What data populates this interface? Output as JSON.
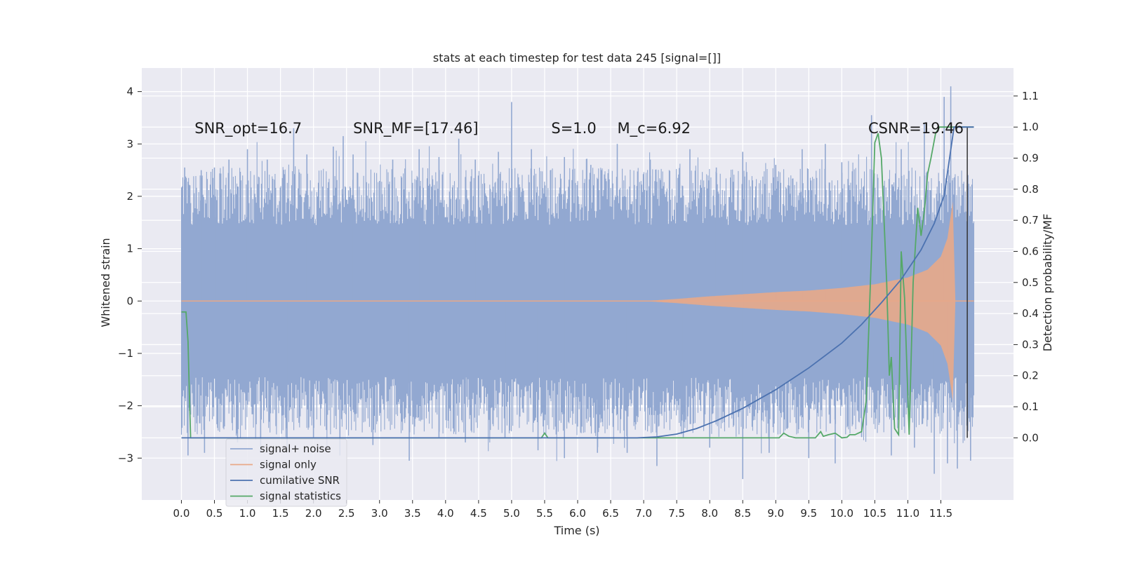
{
  "chart_data": {
    "type": "line",
    "title": "stats at each timestep for test data 245 [signal=[]]",
    "xlabel": "Time (s)",
    "ylabel_left": "Whitened strain",
    "ylabel_right": "Detection probability/MF",
    "xlim": [
      -0.6,
      12.6
    ],
    "ylim_left": [
      -3.8,
      4.45
    ],
    "ylim_right": [
      -0.2,
      1.19
    ],
    "grid": true,
    "legend_placement": "lower-left",
    "x_ticks": [
      0.0,
      0.5,
      1.0,
      1.5,
      2.0,
      2.5,
      3.0,
      3.5,
      4.0,
      4.5,
      5.0,
      5.5,
      6.0,
      6.5,
      7.0,
      7.5,
      8.0,
      8.5,
      9.0,
      9.5,
      10.0,
      10.5,
      11.0,
      11.5
    ],
    "x_tick_labels": [
      "0.0",
      "0.5",
      "1.0",
      "1.5",
      "2.0",
      "2.5",
      "3.0",
      "3.5",
      "4.0",
      "4.5",
      "5.0",
      "5.5",
      "6.0",
      "6.5",
      "7.0",
      "7.5",
      "8.0",
      "8.5",
      "9.0",
      "9.5",
      "10.0",
      "10.5",
      "11.0",
      "11.5"
    ],
    "y_left_ticks": [
      -3,
      -2,
      -1,
      0,
      1,
      2,
      3,
      4
    ],
    "y_left_tick_labels": [
      "−3",
      "−2",
      "−1",
      "0",
      "1",
      "2",
      "3",
      "4"
    ],
    "y_right_ticks": [
      0.0,
      0.1,
      0.2,
      0.3,
      0.4,
      0.5,
      0.6,
      0.7,
      0.8,
      0.9,
      1.0,
      1.1
    ],
    "y_right_tick_labels": [
      "0.0",
      "0.1",
      "0.2",
      "0.3",
      "0.4",
      "0.5",
      "0.6",
      "0.7",
      "0.8",
      "0.9",
      "1.0",
      "1.1"
    ],
    "annotations": [
      {
        "text": "SNR_opt=16.7",
        "x": 0.2,
        "y": 3.3
      },
      {
        "text": "SNR_MF=[17.46]",
        "x": 2.6,
        "y": 3.3
      },
      {
        "text": "S=1.0",
        "x": 5.6,
        "y": 3.3
      },
      {
        "text": "M_c=6.92",
        "x": 6.6,
        "y": 3.3
      },
      {
        "text": "CSNR=19.46",
        "x": 10.4,
        "y": 3.3
      }
    ],
    "series": [
      {
        "name": "signal+ noise",
        "axis": "left",
        "color": "#92a8d1",
        "band_x": [
          0.0,
          12.0
        ],
        "band_inner": [
          -1.45,
          1.45
        ],
        "spikes": [
          {
            "x": 0.05,
            "y": 2.55
          },
          {
            "x": 0.3,
            "y": 2.5
          },
          {
            "x": 0.5,
            "y": 2.55
          },
          {
            "x": 0.72,
            "y": 2.7
          },
          {
            "x": 1.0,
            "y": 2.9
          },
          {
            "x": 1.3,
            "y": 2.7
          },
          {
            "x": 1.7,
            "y": 3.3
          },
          {
            "x": 1.9,
            "y": 2.8
          },
          {
            "x": 2.3,
            "y": 2.95
          },
          {
            "x": 2.45,
            "y": 3.15
          },
          {
            "x": 2.6,
            "y": 2.8
          },
          {
            "x": 3.2,
            "y": 2.7
          },
          {
            "x": 3.6,
            "y": 2.9
          },
          {
            "x": 3.9,
            "y": 2.75
          },
          {
            "x": 4.2,
            "y": 3.1
          },
          {
            "x": 4.45,
            "y": 2.7
          },
          {
            "x": 4.8,
            "y": 2.85
          },
          {
            "x": 5.0,
            "y": 3.8
          },
          {
            "x": 5.3,
            "y": 2.9
          },
          {
            "x": 5.8,
            "y": 2.75
          },
          {
            "x": 6.2,
            "y": 2.6
          },
          {
            "x": 6.6,
            "y": 3.0
          },
          {
            "x": 7.1,
            "y": 2.7
          },
          {
            "x": 7.7,
            "y": 2.9
          },
          {
            "x": 8.1,
            "y": 2.55
          },
          {
            "x": 8.5,
            "y": 2.85
          },
          {
            "x": 9.0,
            "y": 2.6
          },
          {
            "x": 9.4,
            "y": 2.9
          },
          {
            "x": 9.75,
            "y": 3.0
          },
          {
            "x": 10.0,
            "y": 2.65
          },
          {
            "x": 10.45,
            "y": 3.55
          },
          {
            "x": 10.9,
            "y": 2.9
          },
          {
            "x": 11.25,
            "y": 3.4
          },
          {
            "x": 11.55,
            "y": 3.9
          },
          {
            "x": 11.65,
            "y": 4.1
          },
          {
            "x": 11.9,
            "y": 2.2
          },
          {
            "x": 0.1,
            "y": -2.95
          },
          {
            "x": 0.35,
            "y": -2.9
          },
          {
            "x": 0.85,
            "y": -2.7
          },
          {
            "x": 1.2,
            "y": -2.9
          },
          {
            "x": 1.6,
            "y": -2.8
          },
          {
            "x": 2.0,
            "y": -2.6
          },
          {
            "x": 2.4,
            "y": -2.95
          },
          {
            "x": 2.9,
            "y": -2.75
          },
          {
            "x": 3.45,
            "y": -3.05
          },
          {
            "x": 3.9,
            "y": -2.6
          },
          {
            "x": 4.3,
            "y": -2.7
          },
          {
            "x": 4.9,
            "y": -2.6
          },
          {
            "x": 5.4,
            "y": -2.85
          },
          {
            "x": 5.8,
            "y": -3.0
          },
          {
            "x": 6.3,
            "y": -2.9
          },
          {
            "x": 6.75,
            "y": -2.9
          },
          {
            "x": 7.2,
            "y": -3.15
          },
          {
            "x": 7.6,
            "y": -2.6
          },
          {
            "x": 8.0,
            "y": -2.8
          },
          {
            "x": 8.5,
            "y": -3.4
          },
          {
            "x": 8.9,
            "y": -2.9
          },
          {
            "x": 9.5,
            "y": -3.0
          },
          {
            "x": 9.9,
            "y": -3.1
          },
          {
            "x": 10.3,
            "y": -2.6
          },
          {
            "x": 10.75,
            "y": -2.95
          },
          {
            "x": 11.1,
            "y": -2.8
          },
          {
            "x": 11.4,
            "y": -3.3
          },
          {
            "x": 11.6,
            "y": -3.1
          },
          {
            "x": 11.75,
            "y": -3.2
          },
          {
            "x": 11.95,
            "y": -3.05
          }
        ]
      },
      {
        "name": "signal only",
        "axis": "left",
        "color": "#e8a888",
        "envelope_t": [
          0.0,
          7.0,
          7.5,
          8.0,
          8.5,
          9.0,
          9.5,
          10.0,
          10.5,
          11.0,
          11.3,
          11.5,
          11.6,
          11.68,
          11.72,
          12.0
        ],
        "envelope_a": [
          0.0,
          0.0,
          0.04,
          0.09,
          0.13,
          0.17,
          0.2,
          0.25,
          0.32,
          0.45,
          0.6,
          0.85,
          1.2,
          1.9,
          0.0,
          0.0
        ]
      },
      {
        "name": "cumilative SNR",
        "axis": "right",
        "color": "#4c72b0",
        "x": [
          0.0,
          6.9,
          7.2,
          7.5,
          7.8,
          8.1,
          8.5,
          9.0,
          9.5,
          10.0,
          10.3,
          10.6,
          10.9,
          11.2,
          11.4,
          11.55,
          11.7,
          11.85,
          12.0
        ],
        "y": [
          0.0,
          0.0,
          0.003,
          0.012,
          0.03,
          0.055,
          0.095,
          0.155,
          0.225,
          0.305,
          0.365,
          0.435,
          0.51,
          0.605,
          0.69,
          0.78,
          1.0,
          1.0,
          1.0
        ]
      },
      {
        "name": "signal statistics",
        "axis": "right",
        "color": "#55a868",
        "x": [
          0.0,
          0.07,
          0.1,
          0.12,
          0.14,
          0.3,
          5.45,
          5.5,
          5.55,
          9.05,
          9.12,
          9.2,
          9.3,
          9.6,
          9.68,
          9.72,
          9.8,
          9.9,
          10.0,
          10.08,
          10.12,
          10.2,
          10.3,
          10.37,
          10.45,
          10.5,
          10.55,
          10.6,
          10.68,
          10.72,
          10.75,
          10.8,
          10.86,
          10.9,
          10.95,
          11.02,
          11.08,
          11.15,
          11.2,
          11.25,
          11.3,
          11.35,
          11.42,
          11.48,
          11.55,
          11.65,
          12.0
        ],
        "y": [
          0.405,
          0.405,
          0.31,
          0.15,
          0.0,
          0.0,
          0.0,
          0.015,
          0.0,
          0.0,
          0.015,
          0.005,
          0.0,
          0.0,
          0.02,
          0.005,
          0.01,
          0.015,
          0.0,
          0.002,
          0.01,
          0.01,
          0.02,
          0.12,
          0.6,
          0.95,
          0.98,
          0.9,
          0.5,
          0.2,
          0.26,
          0.03,
          0.01,
          0.6,
          0.45,
          0.01,
          0.5,
          0.74,
          0.65,
          0.73,
          0.85,
          0.9,
          0.98,
          1.0,
          1.0,
          1.0,
          1.0
        ]
      }
    ],
    "vertical_marker": {
      "x": 11.9,
      "color": "#333333"
    }
  }
}
